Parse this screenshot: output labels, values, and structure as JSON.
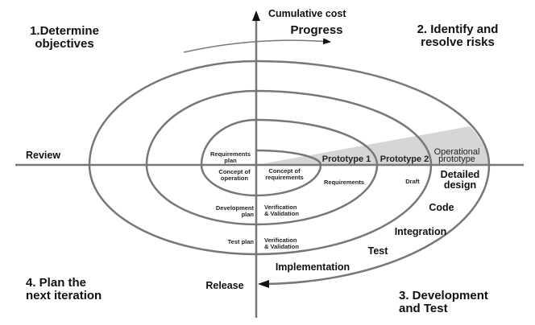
{
  "colors": {
    "line": "#777777",
    "wedge": "#d6d6d6",
    "text": "#111111"
  },
  "axes": {
    "y_label": "Cumulative cost",
    "x_left_label": "Review",
    "y_bottom_label": "Release"
  },
  "progress_label": "Progress",
  "quadrants": {
    "q1": [
      "1.Determine",
      "objectives"
    ],
    "q2": [
      "2. Identify and",
      "resolve risks"
    ],
    "q3": [
      "3. Development",
      "and Test"
    ],
    "q4": [
      "4. Plan the",
      "next iteration"
    ]
  },
  "planning": {
    "requirements_plan": [
      "Requirements",
      "plan"
    ],
    "concept_of_operation": [
      "Concept of",
      "operation"
    ],
    "development_plan": [
      "Development",
      "plan"
    ],
    "test_plan": "Test plan"
  },
  "center": {
    "concept_of_requirements": [
      "Concept of",
      "requirements"
    ],
    "vv1": [
      "Verification",
      "& Validation"
    ],
    "vv2": [
      "Verification",
      "& Validation"
    ]
  },
  "prototypes": {
    "p1": "Prototype 1",
    "p2": "Prototype 2",
    "operational": [
      "Operational",
      "prototype"
    ]
  },
  "development": {
    "requirements": "Requirements",
    "draft": "Draft",
    "detailed_design": [
      "Detailed",
      "design"
    ],
    "code": "Code",
    "integration": "Integration",
    "test": "Test",
    "implementation": "Implementation"
  }
}
